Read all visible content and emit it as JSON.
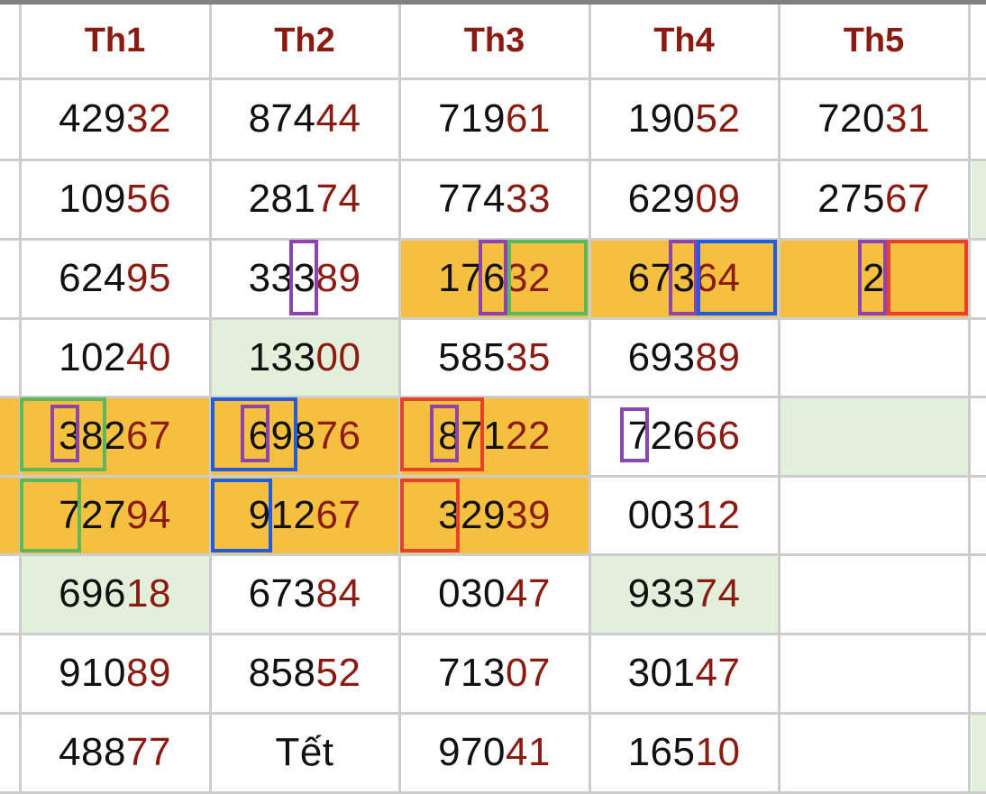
{
  "headers": [
    "Th1",
    "Th2",
    "Th3",
    "Th4",
    "Th5"
  ],
  "rows": [
    [
      {
        "head": "429",
        "tail": "32"
      },
      {
        "head": "874",
        "tail": "44"
      },
      {
        "head": "719",
        "tail": "61"
      },
      {
        "head": "190",
        "tail": "52"
      },
      {
        "head": "720",
        "tail": "31"
      }
    ],
    [
      {
        "head": "109",
        "tail": "56"
      },
      {
        "head": "281",
        "tail": "74"
      },
      {
        "head": "774",
        "tail": "33"
      },
      {
        "head": "629",
        "tail": "09"
      },
      {
        "head": "275",
        "tail": "67"
      }
    ],
    [
      {
        "head": "624",
        "tail": "95"
      },
      {
        "head": "333",
        "tail": "89"
      },
      {
        "head": "176",
        "tail": "32"
      },
      {
        "head": "673",
        "tail": "64"
      },
      {
        "head": "2",
        "tail": ""
      }
    ],
    [
      {
        "head": "102",
        "tail": "40"
      },
      {
        "head": "133",
        "tail": "00"
      },
      {
        "head": "585",
        "tail": "35"
      },
      {
        "head": "693",
        "tail": "89"
      },
      {
        "head": "",
        "tail": ""
      }
    ],
    [
      {
        "head": "382",
        "tail": "67"
      },
      {
        "head": "698",
        "tail": "76"
      },
      {
        "head": "871",
        "tail": "22"
      },
      {
        "head": "726",
        "tail": "66"
      },
      {
        "head": "",
        "tail": ""
      }
    ],
    [
      {
        "head": "727",
        "tail": "94"
      },
      {
        "head": "912",
        "tail": "67"
      },
      {
        "head": "329",
        "tail": "39"
      },
      {
        "head": "003",
        "tail": "12"
      },
      {
        "head": "",
        "tail": ""
      }
    ],
    [
      {
        "head": "696",
        "tail": "18"
      },
      {
        "head": "673",
        "tail": "84"
      },
      {
        "head": "030",
        "tail": "47"
      },
      {
        "head": "933",
        "tail": "74"
      },
      {
        "head": "",
        "tail": ""
      }
    ],
    [
      {
        "head": "910",
        "tail": "89"
      },
      {
        "head": "858",
        "tail": "52"
      },
      {
        "head": "713",
        "tail": "07"
      },
      {
        "head": "301",
        "tail": "47"
      },
      {
        "head": "",
        "tail": ""
      }
    ],
    [
      {
        "head": "488",
        "tail": "77"
      },
      {
        "head": "Tết",
        "tail": ""
      },
      {
        "head": "970",
        "tail": "41"
      },
      {
        "head": "165",
        "tail": "10"
      },
      {
        "head": "",
        "tail": ""
      }
    ]
  ],
  "colors": {
    "header_text": "#8b1a10",
    "tail_digits": "#8b1a10",
    "highlight_orange": "#f5bf3f",
    "highlight_green": "#e2efda",
    "box_purple": "#8e44ad",
    "box_blue": "#1f5ce0",
    "box_green": "#5cb85c",
    "box_red": "#e8412b",
    "grid_line": "#cdcdcd"
  }
}
